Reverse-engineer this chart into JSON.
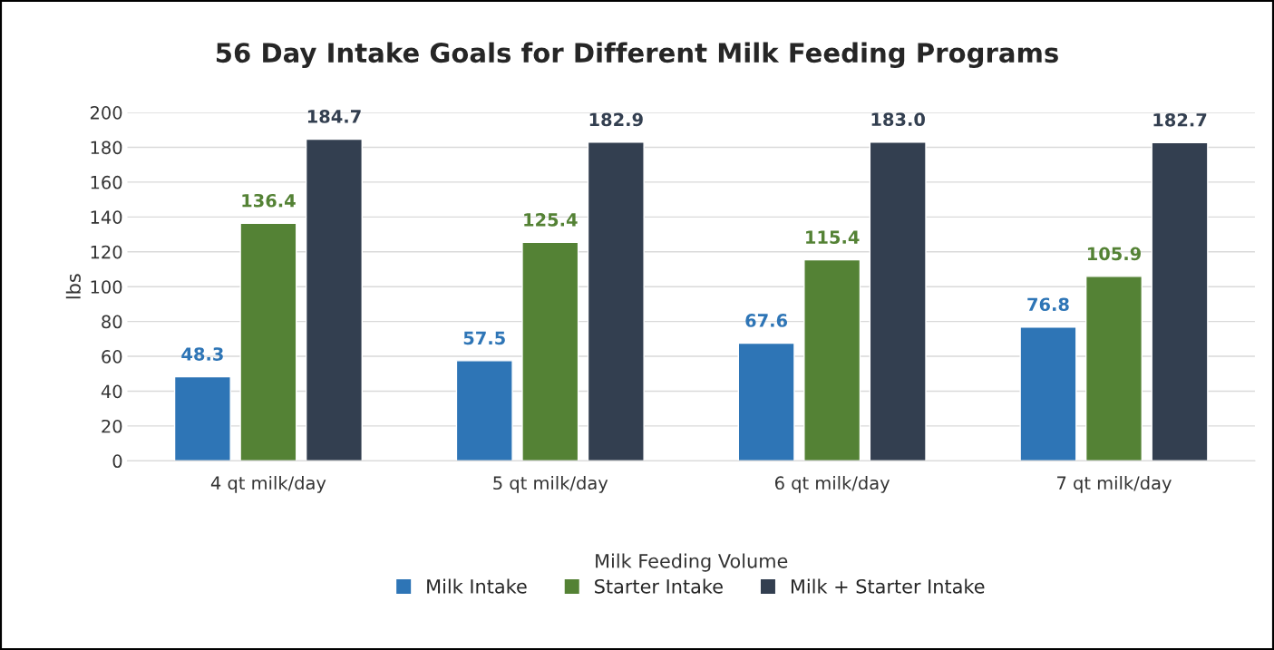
{
  "chart_data": {
    "type": "bar",
    "title": "56 Day Intake Goals for Different Milk Feeding Programs",
    "xlabel": "Milk Feeding Volume",
    "ylabel": "lbs",
    "categories": [
      "4 qt milk/day",
      "5 qt milk/day",
      "6 qt milk/day",
      "7 qt milk/day"
    ],
    "series": [
      {
        "name": "Milk Intake",
        "color": "#2e75b6",
        "values": [
          48.3,
          57.5,
          67.6,
          76.8
        ],
        "value_labels": [
          "48.3",
          "57.5",
          "67.6",
          "76.8"
        ]
      },
      {
        "name": "Starter Intake",
        "color": "#548235",
        "values": [
          136.4,
          125.4,
          115.4,
          105.9
        ],
        "value_labels": [
          "136.4",
          "125.4",
          "115.4",
          "105.9"
        ]
      },
      {
        "name": "Milk + Starter Intake",
        "color": "#333f50",
        "values": [
          184.7,
          182.9,
          183.0,
          182.7
        ],
        "value_labels": [
          "184.7",
          "182.9",
          "183.0",
          "182.7"
        ]
      }
    ],
    "ylim": [
      0,
      200
    ],
    "yticks": [
      0,
      20,
      40,
      60,
      80,
      100,
      120,
      140,
      160,
      180,
      200
    ],
    "grid": "y",
    "legend": "bottom"
  }
}
